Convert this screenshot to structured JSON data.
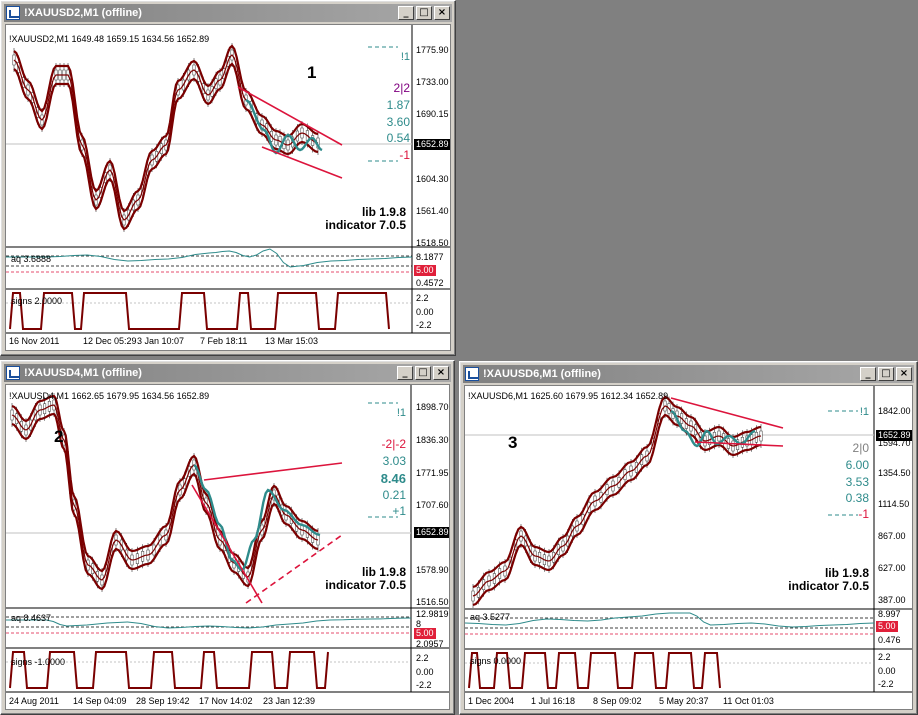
{
  "colors": {
    "candle": "#8b0000",
    "band": "#7a0000",
    "teal": "#2e8b8b",
    "channel": "#dc143c",
    "purple": "#800080"
  },
  "windows": [
    {
      "id": "w1",
      "title": "!XAUUSD2,M1 (offline)",
      "info": "!XAUUSD2,M1  1649.48 1659.15 1634.56 1652.89",
      "label": "1",
      "lib": "lib 1.9.8",
      "indicator": "indicator 7.0.5",
      "side": [
        "!1",
        "2|2",
        "1.87",
        "3.60",
        "0.54",
        "-1"
      ],
      "price_axis": [
        "1775.90",
        "1733.00",
        "1690.15",
        "1604.30",
        "1561.40",
        "1518.50"
      ],
      "last_price": "1652.89",
      "aq_label": "aq 3.6888",
      "aq_axis": [
        "8.1877",
        "5.00",
        "0.4572"
      ],
      "signs_label": "signs 2.0000",
      "signs_axis": [
        "2.2",
        "0.00",
        "-2.2"
      ],
      "time_axis": [
        "16 Nov 2011",
        "12 Dec 05:29",
        "3 Jan 10:07",
        "7 Feb 18:11",
        "13 Mar 15:03"
      ]
    },
    {
      "id": "w2",
      "title": "!XAUUSD4,M1 (offline)",
      "info": "!XAUUSD4,M1  1662.65 1679.95 1634.56 1652.89",
      "label": "2",
      "lib": "lib 1.9.8",
      "indicator": "indicator 7.0.5",
      "side": [
        "!1",
        "-2|-2",
        "3.03",
        "8.46",
        "0.21",
        "+1"
      ],
      "price_axis": [
        "1898.70",
        "1836.30",
        "1771.95",
        "1707.60",
        "1643.25",
        "1578.90",
        "1516.50"
      ],
      "last_price": "1652.89",
      "aq_label": "aq 8.4637",
      "aq_axis": [
        "12.9819",
        "8",
        "5.00",
        "2.0957"
      ],
      "signs_label": "signs -1.0000",
      "signs_axis": [
        "2.2",
        "0.00",
        "-2.2"
      ],
      "time_axis": [
        "24 Aug 2011",
        "14 Sep 04:09",
        "28 Sep 19:42",
        "17 Nov 14:02",
        "23 Jan 12:39"
      ]
    },
    {
      "id": "w3",
      "title": "!XAUUSD6,M1 (offline)",
      "info": "!XAUUSD6,M1  1625.60 1679.95 1612.34 1652.89",
      "label": "3",
      "lib": "lib 1.9.8",
      "indicator": "indicator 7.0.5",
      "side": [
        "!1",
        "2|0",
        "6.00",
        "3.53",
        "0.38",
        "-1"
      ],
      "price_axis": [
        "1842.00",
        "1594.70",
        "1354.50",
        "1114.50",
        "867.00",
        "627.00",
        "387.00"
      ],
      "last_price": "1652.89",
      "aq_label": "aq 3.5277",
      "aq_axis": [
        "8.997",
        "5.00",
        "0.476"
      ],
      "signs_label": "signs 0.0000",
      "signs_axis": [
        "2.2",
        "0.00",
        "-2.2"
      ],
      "time_axis": [
        "1 Dec 2004",
        "1 Jul 16:18",
        "8 Sep 09:02",
        "5 May 20:37",
        "11 Oct 01:03"
      ]
    }
  ]
}
